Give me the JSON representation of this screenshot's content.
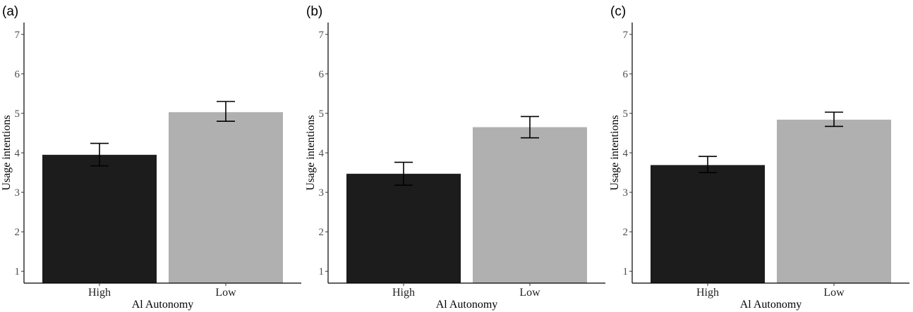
{
  "chart_data": [
    {
      "type": "bar",
      "panel_label": "(a)",
      "categories": [
        "High",
        "Low"
      ],
      "values": [
        3.95,
        5.03
      ],
      "error_low": [
        3.67,
        4.8
      ],
      "error_high": [
        4.24,
        5.3
      ],
      "colors": [
        "#1c1c1c",
        "#b0b0b0"
      ],
      "xlabel": "Al Autonomy",
      "ylabel": "Usage intentions",
      "ylim": [
        0.7,
        7.3
      ],
      "yticks": [
        1,
        2,
        3,
        4,
        5,
        6,
        7
      ],
      "grid": false
    },
    {
      "type": "bar",
      "panel_label": "(b)",
      "categories": [
        "High",
        "Low"
      ],
      "values": [
        3.47,
        4.65
      ],
      "error_low": [
        3.18,
        4.38
      ],
      "error_high": [
        3.76,
        4.92
      ],
      "colors": [
        "#1c1c1c",
        "#b0b0b0"
      ],
      "xlabel": "Al Autonomy",
      "ylabel": "Usage intentions",
      "ylim": [
        0.7,
        7.3
      ],
      "yticks": [
        1,
        2,
        3,
        4,
        5,
        6,
        7
      ],
      "grid": false
    },
    {
      "type": "bar",
      "panel_label": "(c)",
      "categories": [
        "High",
        "Low"
      ],
      "values": [
        3.69,
        4.84
      ],
      "error_low": [
        3.5,
        4.67
      ],
      "error_high": [
        3.91,
        5.03
      ],
      "colors": [
        "#1c1c1c",
        "#b0b0b0"
      ],
      "xlabel": "Al Autonomy",
      "ylabel": "Usage intentions",
      "ylim": [
        0.7,
        7.3
      ],
      "yticks": [
        1,
        2,
        3,
        4,
        5,
        6,
        7
      ],
      "grid": false
    }
  ]
}
